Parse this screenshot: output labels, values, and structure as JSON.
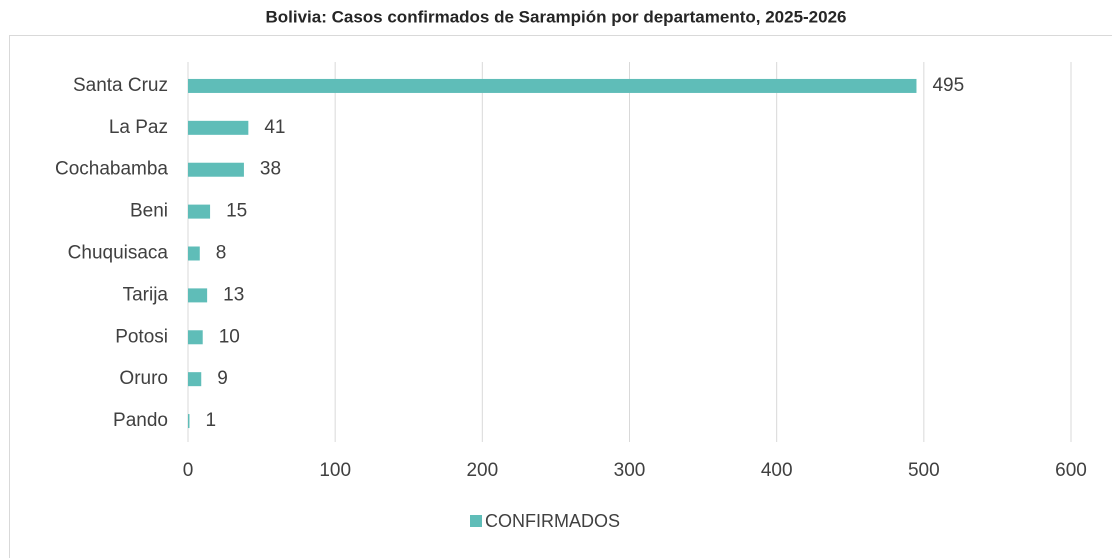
{
  "chart_data": {
    "type": "bar",
    "orientation": "horizontal",
    "title": "Bolivia: Casos confirmados de Sarampión por departamento, 2025-2026",
    "categories": [
      "Santa Cruz",
      "La Paz",
      "Cochabamba",
      "Beni",
      "Chuquisaca",
      "Tarija",
      "Potosi",
      "Oruro",
      "Pando"
    ],
    "series": [
      {
        "name": "CONFIRMADOS",
        "color": "#5fbdb8",
        "values": [
          495,
          41,
          38,
          15,
          8,
          13,
          10,
          9,
          1
        ]
      }
    ],
    "xlim": [
      0,
      600
    ],
    "xticks": [
      0,
      100,
      200,
      300,
      400,
      500,
      600
    ],
    "grid": true,
    "legend": "bottom"
  }
}
